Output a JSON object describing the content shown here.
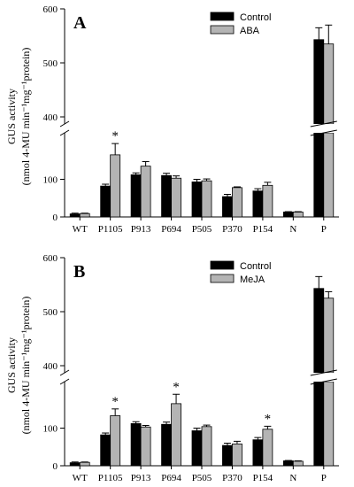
{
  "colors": {
    "control": "#000000",
    "treatment": "#b4b4b4",
    "axis": "#000000"
  },
  "chart_data": [
    {
      "type": "bar",
      "panel_label": "A",
      "ylabel": "GUS activity",
      "ylabel_units": "(nmol 4-MU min⁻¹mg⁻¹protein)",
      "categories": [
        "WT",
        "P1105",
        "P913",
        "P694",
        "P505",
        "P370",
        "P154",
        "N",
        "P"
      ],
      "series": [
        {
          "name": "Control",
          "values": [
            8,
            82,
            112,
            110,
            93,
            54,
            69,
            13,
            543
          ],
          "errors": [
            2,
            5,
            5,
            6,
            7,
            6,
            6,
            1,
            22
          ]
        },
        {
          "name": "ABA",
          "values": [
            9,
            165,
            135,
            103,
            96,
            78,
            84,
            13,
            535
          ],
          "errors": [
            1,
            30,
            12,
            6,
            5,
            2,
            8,
            1,
            35
          ]
        }
      ],
      "significant": [
        "P1105"
      ],
      "significance_mark": "*",
      "y_axis": {
        "lower_range": [
          0,
          200
        ],
        "upper_range": [
          400,
          600
        ],
        "lower_ticks": [
          0,
          100
        ],
        "upper_ticks": [
          400,
          500,
          600
        ],
        "broken": true
      },
      "legend_position": "top-right",
      "grid": false
    },
    {
      "type": "bar",
      "panel_label": "B",
      "ylabel": "GUS activity",
      "ylabel_units": "(nmol 4-MU min⁻¹mg⁻¹protein)",
      "categories": [
        "WT",
        "P1105",
        "P913",
        "P694",
        "P505",
        "P370",
        "P154",
        "N",
        "P"
      ],
      "series": [
        {
          "name": "Control",
          "values": [
            8,
            82,
            112,
            110,
            93,
            54,
            69,
            13,
            543
          ],
          "errors": [
            2,
            5,
            5,
            6,
            7,
            6,
            6,
            1,
            22
          ]
        },
        {
          "name": "MeJA",
          "values": [
            9,
            133,
            103,
            165,
            104,
            58,
            97,
            12,
            525
          ],
          "errors": [
            1,
            18,
            4,
            25,
            4,
            7,
            8,
            1,
            12
          ]
        }
      ],
      "significant": [
        "P1105",
        "P694",
        "P154"
      ],
      "significance_mark": "*",
      "y_axis": {
        "lower_range": [
          0,
          200
        ],
        "upper_range": [
          400,
          600
        ],
        "lower_ticks": [
          0,
          100
        ],
        "upper_ticks": [
          400,
          500,
          600
        ],
        "broken": true
      },
      "legend_position": "top-right",
      "grid": false
    }
  ]
}
